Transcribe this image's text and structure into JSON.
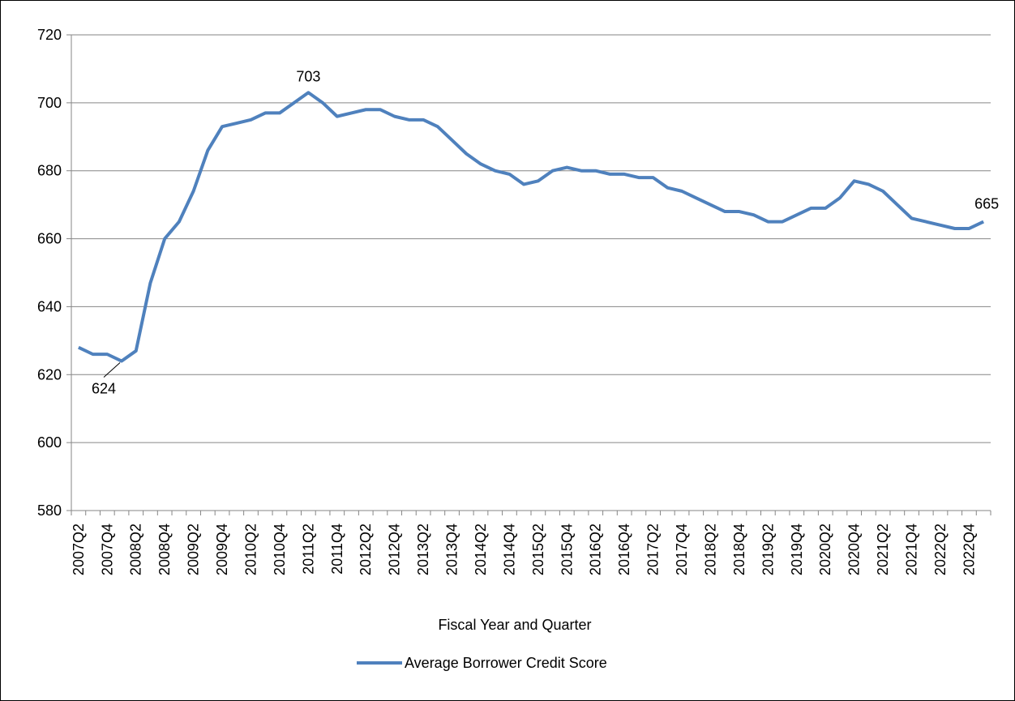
{
  "chart_data": {
    "type": "line",
    "x_label": "Fiscal Year and Quarter",
    "categories": [
      "2007Q2",
      null,
      "2007Q4",
      null,
      "2008Q2",
      null,
      "2008Q4",
      null,
      "2009Q2",
      null,
      "2009Q4",
      null,
      "2010Q2",
      null,
      "2010Q4",
      null,
      "2011Q2",
      null,
      "2011Q4",
      null,
      "2012Q2",
      null,
      "2012Q4",
      null,
      "2013Q2",
      null,
      "2013Q4",
      null,
      "2014Q2",
      null,
      "2014Q4",
      null,
      "2015Q2",
      null,
      "2015Q4",
      null,
      "2016Q2",
      null,
      "2016Q4",
      null,
      "2017Q2",
      null,
      "2017Q4",
      null,
      "2018Q2",
      null,
      "2018Q4",
      null,
      "2019Q2",
      null,
      "2019Q4",
      null,
      "2020Q2",
      null,
      "2020Q4",
      null,
      "2021Q2",
      null,
      "2021Q4",
      null,
      "2022Q2",
      null,
      "2022Q4",
      null
    ],
    "series": [
      {
        "name": "Average Borrower Credit Score",
        "color": "#4f81bd",
        "values": [
          628,
          626,
          626,
          624,
          627,
          647,
          660,
          665,
          674,
          686,
          693,
          694,
          695,
          697,
          697,
          700,
          703,
          700,
          696,
          697,
          698,
          698,
          696,
          695,
          695,
          693,
          689,
          685,
          682,
          680,
          679,
          676,
          677,
          680,
          681,
          680,
          680,
          679,
          679,
          678,
          678,
          675,
          674,
          672,
          670,
          668,
          668,
          667,
          665,
          665,
          667,
          669,
          669,
          672,
          677,
          676,
          674,
          670,
          666,
          665,
          664,
          663,
          663,
          665
        ]
      }
    ],
    "labeled_points": [
      3,
      16,
      63
    ],
    "ylim": [
      580,
      720
    ],
    "yticks": [
      580,
      600,
      620,
      640,
      660,
      680,
      700,
      720
    ],
    "grid": true,
    "legend": "bottom"
  }
}
